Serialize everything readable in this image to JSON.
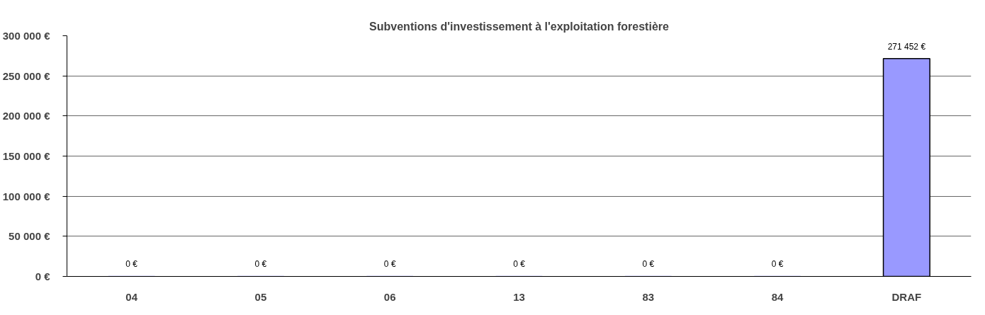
{
  "chart_data": {
    "type": "bar",
    "title": "Subventions d'investissement à l'exploitation forestière",
    "categories": [
      "04",
      "05",
      "06",
      "13",
      "83",
      "84",
      "DRAF"
    ],
    "values": [
      0,
      0,
      0,
      0,
      0,
      0,
      271452
    ],
    "color": "#9999ff",
    "value_labels": [
      "0 €",
      "0 €",
      "0 €",
      "0 €",
      "0 €",
      "0 €",
      "271 452 €"
    ],
    "ylim": [
      0,
      300000
    ],
    "yticks": [
      {
        "value": 0,
        "label": "0 €"
      },
      {
        "value": 50000,
        "label": "50 000 €"
      },
      {
        "value": 100000,
        "label": "100 000 €"
      },
      {
        "value": 150000,
        "label": "150 000 €"
      },
      {
        "value": 200000,
        "label": "200 000 €"
      },
      {
        "value": 250000,
        "label": "250 000 €"
      },
      {
        "value": 300000,
        "label": "300 000 €"
      }
    ],
    "grid": "y"
  }
}
